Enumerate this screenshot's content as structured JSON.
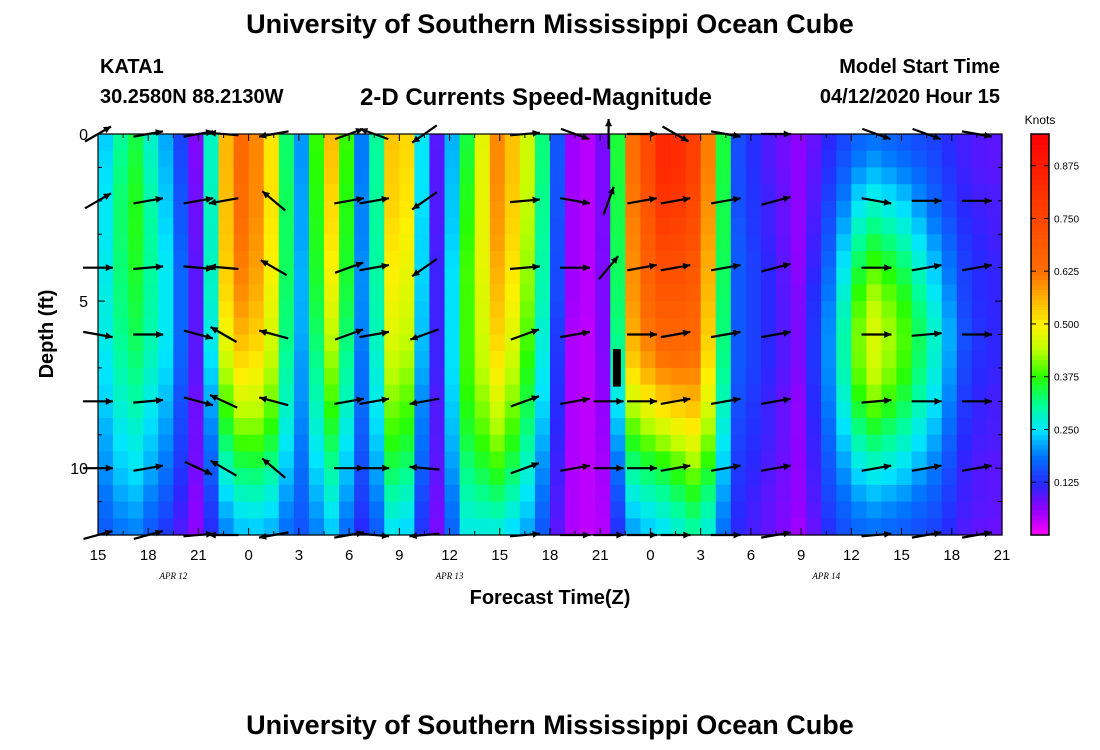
{
  "header": {
    "title": "University of Southern Mississippi Ocean Cube",
    "station_id": "KATA1",
    "station_coords": "30.2580N 88.2130W",
    "subtitle": "2-D Currents Speed-Magnitude",
    "model_start_label": "Model Start Time",
    "model_start_value": "04/12/2020 Hour 15"
  },
  "footer": {
    "title": "University of Southern Mississippi Ocean Cube"
  },
  "chart_data": {
    "type": "heatmap",
    "title": "2-D Currents Speed-Magnitude",
    "xlabel": "Forecast Time(Z)",
    "ylabel": "Depth (ft)",
    "x_range_hours": [
      0,
      54
    ],
    "x_tick_labels": [
      "15",
      "18",
      "21",
      "0",
      "3",
      "6",
      "9",
      "12",
      "15",
      "18",
      "21",
      "0",
      "3",
      "6",
      "9",
      "12",
      "15",
      "18",
      "21"
    ],
    "date_labels": [
      {
        "label": "APR 12",
        "hour": 4.5
      },
      {
        "label": "APR 13",
        "hour": 21
      },
      {
        "label": "APR 14",
        "hour": 43.5
      }
    ],
    "ylim": [
      0,
      12
    ],
    "y_ticks": [
      0,
      5,
      10
    ],
    "y_tick_labels": [
      "0",
      "5",
      "10"
    ],
    "colorbar": {
      "units": "Knots",
      "range": [
        0,
        0.95
      ],
      "ticks": [
        0.125,
        0.25,
        0.375,
        0.5,
        0.625,
        0.75,
        0.875
      ],
      "tick_labels": [
        "0.125",
        "0.250",
        "0.375",
        "0.500",
        "0.625",
        "0.750",
        "0.875"
      ]
    },
    "depth_profile_ft": [
      0,
      1,
      2,
      3,
      4,
      5,
      6,
      7,
      8,
      9,
      10,
      11,
      12
    ],
    "speed_profiles": [
      {
        "hour": 0,
        "speeds": [
          0.2,
          0.21,
          0.22,
          0.22,
          0.23,
          0.24,
          0.24,
          0.23,
          0.22,
          0.2,
          0.19,
          0.17,
          0.15
        ]
      },
      {
        "hour": 2,
        "speeds": [
          0.36,
          0.37,
          0.38,
          0.38,
          0.37,
          0.36,
          0.35,
          0.33,
          0.31,
          0.28,
          0.26,
          0.23,
          0.2
        ]
      },
      {
        "hour": 4,
        "speeds": [
          0.22,
          0.23,
          0.24,
          0.25,
          0.26,
          0.26,
          0.26,
          0.25,
          0.23,
          0.21,
          0.19,
          0.16,
          0.13
        ]
      },
      {
        "hour": 6,
        "speeds": [
          0.06,
          0.06,
          0.07,
          0.07,
          0.08,
          0.08,
          0.08,
          0.08,
          0.07,
          0.07,
          0.07,
          0.06,
          0.06
        ]
      },
      {
        "hour": 8,
        "speeds": [
          0.66,
          0.66,
          0.65,
          0.64,
          0.63,
          0.61,
          0.57,
          0.52,
          0.46,
          0.4,
          0.33,
          0.27,
          0.22
        ]
      },
      {
        "hour": 10,
        "speeds": [
          0.58,
          0.58,
          0.58,
          0.57,
          0.56,
          0.54,
          0.52,
          0.49,
          0.45,
          0.4,
          0.34,
          0.28,
          0.23
        ]
      },
      {
        "hour": 12,
        "speeds": [
          0.18,
          0.18,
          0.19,
          0.19,
          0.2,
          0.2,
          0.2,
          0.19,
          0.19,
          0.18,
          0.17,
          0.16,
          0.15
        ]
      },
      {
        "hour": 14,
        "speeds": [
          0.56,
          0.55,
          0.53,
          0.52,
          0.5,
          0.48,
          0.45,
          0.42,
          0.39,
          0.35,
          0.31,
          0.27,
          0.23
        ]
      },
      {
        "hour": 16,
        "speeds": [
          0.14,
          0.14,
          0.15,
          0.15,
          0.16,
          0.16,
          0.16,
          0.15,
          0.15,
          0.14,
          0.13,
          0.12,
          0.1
        ]
      },
      {
        "hour": 18,
        "speeds": [
          0.66,
          0.65,
          0.64,
          0.62,
          0.6,
          0.58,
          0.56,
          0.53,
          0.49,
          0.45,
          0.4,
          0.34,
          0.29
        ]
      },
      {
        "hour": 20,
        "speeds": [
          0.06,
          0.06,
          0.06,
          0.06,
          0.07,
          0.07,
          0.07,
          0.07,
          0.06,
          0.06,
          0.06,
          0.05,
          0.05
        ]
      },
      {
        "hour": 22,
        "speeds": [
          0.34,
          0.35,
          0.36,
          0.37,
          0.38,
          0.38,
          0.38,
          0.38,
          0.37,
          0.35,
          0.32,
          0.29,
          0.26
        ]
      },
      {
        "hour": 24,
        "speeds": [
          0.62,
          0.62,
          0.61,
          0.6,
          0.58,
          0.56,
          0.54,
          0.51,
          0.47,
          0.43,
          0.38,
          0.32,
          0.26
        ]
      },
      {
        "hour": 26,
        "speeds": [
          0.42,
          0.42,
          0.41,
          0.4,
          0.39,
          0.38,
          0.36,
          0.34,
          0.32,
          0.29,
          0.26,
          0.23,
          0.2
        ]
      },
      {
        "hour": 28,
        "speeds": [
          0.06,
          0.06,
          0.06,
          0.06,
          0.06,
          0.06,
          0.05,
          0.05,
          0.05,
          0.05,
          0.05,
          0.05,
          0.05
        ]
      },
      {
        "hour": 30,
        "speeds": [
          0.03,
          0.03,
          0.03,
          0.03,
          0.03,
          0.03,
          0.03,
          0.03,
          0.03,
          0.03,
          0.03,
          0.03,
          0.03
        ]
      },
      {
        "hour": 32,
        "speeds": [
          0.64,
          0.64,
          0.63,
          0.62,
          0.61,
          0.6,
          0.58,
          0.54,
          0.46,
          0.39,
          0.32,
          0.26,
          0.21
        ]
      },
      {
        "hour": 34,
        "speeds": [
          0.86,
          0.86,
          0.82,
          0.78,
          0.74,
          0.7,
          0.66,
          0.62,
          0.54,
          0.45,
          0.36,
          0.3,
          0.25
        ]
      },
      {
        "hour": 36,
        "speeds": [
          0.74,
          0.74,
          0.72,
          0.7,
          0.68,
          0.66,
          0.64,
          0.61,
          0.56,
          0.5,
          0.43,
          0.36,
          0.31
        ]
      },
      {
        "hour": 38,
        "speeds": [
          0.16,
          0.16,
          0.16,
          0.17,
          0.17,
          0.17,
          0.17,
          0.17,
          0.16,
          0.15,
          0.14,
          0.13,
          0.12
        ]
      },
      {
        "hour": 40,
        "speeds": [
          0.1,
          0.1,
          0.11,
          0.11,
          0.12,
          0.12,
          0.12,
          0.12,
          0.11,
          0.11,
          0.1,
          0.09,
          0.09
        ]
      },
      {
        "hour": 42,
        "speeds": [
          0.06,
          0.06,
          0.06,
          0.06,
          0.06,
          0.07,
          0.07,
          0.07,
          0.06,
          0.06,
          0.06,
          0.06,
          0.05
        ]
      },
      {
        "hour": 44,
        "speeds": [
          0.13,
          0.14,
          0.16,
          0.18,
          0.2,
          0.22,
          0.23,
          0.23,
          0.22,
          0.2,
          0.18,
          0.16,
          0.14
        ]
      },
      {
        "hour": 46,
        "speeds": [
          0.18,
          0.22,
          0.28,
          0.34,
          0.4,
          0.45,
          0.48,
          0.47,
          0.42,
          0.35,
          0.28,
          0.22,
          0.18
        ]
      },
      {
        "hour": 48,
        "speeds": [
          0.16,
          0.19,
          0.24,
          0.29,
          0.34,
          0.38,
          0.4,
          0.39,
          0.35,
          0.3,
          0.25,
          0.2,
          0.16
        ]
      },
      {
        "hour": 50,
        "speeds": [
          0.14,
          0.15,
          0.17,
          0.2,
          0.23,
          0.26,
          0.28,
          0.27,
          0.25,
          0.22,
          0.19,
          0.16,
          0.14
        ]
      },
      {
        "hour": 52,
        "speeds": [
          0.1,
          0.1,
          0.11,
          0.12,
          0.13,
          0.13,
          0.14,
          0.13,
          0.12,
          0.11,
          0.1,
          0.1,
          0.09
        ]
      },
      {
        "hour": 54,
        "speeds": [
          0.09,
          0.09,
          0.1,
          0.1,
          0.11,
          0.11,
          0.11,
          0.11,
          0.1,
          0.1,
          0.09,
          0.09,
          0.08
        ]
      }
    ],
    "vector_depths_ft": [
      0,
      2,
      4,
      6,
      8,
      10,
      12
    ],
    "vector_columns": [
      {
        "hour": 0,
        "dirs": [
          60,
          60,
          90,
          100,
          90,
          90,
          75
        ]
      },
      {
        "hour": 3,
        "dirs": [
          80,
          80,
          85,
          90,
          85,
          80,
          75
        ]
      },
      {
        "hour": 6,
        "dirs": [
          80,
          80,
          95,
          105,
          105,
          115,
          85
        ]
      },
      {
        "hour": 7.5,
        "dirs": [
          275,
          260,
          275,
          300,
          295,
          300,
          270
        ]
      },
      {
        "hour": 10.5,
        "dirs": [
          260,
          310,
          300,
          285,
          285,
          310,
          260
        ]
      },
      {
        "hour": 15,
        "dirs": [
          70,
          80,
          70,
          70,
          80,
          90,
          80
        ]
      },
      {
        "hour": 16.5,
        "dirs": [
          290,
          80,
          80,
          80,
          80,
          90,
          95
        ]
      },
      {
        "hour": 19.5,
        "dirs": [
          235,
          235,
          235,
          250,
          260,
          275,
          265
        ]
      },
      {
        "hour": 25.5,
        "dirs": [
          85,
          85,
          85,
          70,
          70,
          70,
          85
        ]
      },
      {
        "hour": 28.5,
        "dirs": [
          110,
          100,
          90,
          80,
          80,
          80,
          90
        ]
      },
      {
        "hour": 30.5,
        "dirs": [
          0,
          20,
          40,
          null,
          90,
          90,
          90
        ]
      },
      {
        "hour": 32.5,
        "dirs": [
          90,
          80,
          80,
          90,
          90,
          90,
          90
        ]
      },
      {
        "hour": 34.5,
        "dirs": [
          120,
          80,
          80,
          80,
          80,
          80,
          90
        ]
      },
      {
        "hour": 37.5,
        "dirs": [
          100,
          80,
          80,
          80,
          80,
          80,
          90
        ]
      },
      {
        "hour": 40.5,
        "dirs": [
          90,
          75,
          75,
          80,
          80,
          80,
          80
        ]
      },
      {
        "hour": 46.5,
        "dirs": [
          110,
          100,
          90,
          90,
          85,
          80,
          85
        ]
      },
      {
        "hour": 49.5,
        "dirs": [
          110,
          90,
          80,
          85,
          90,
          80,
          80
        ]
      },
      {
        "hour": 52.5,
        "dirs": [
          100,
          90,
          80,
          90,
          90,
          80,
          80
        ]
      }
    ],
    "missing_data_marker": {
      "hour": 31,
      "depth_ft_start": 6.5,
      "depth_ft_end": 7.5
    },
    "grid": false,
    "legend": "right"
  }
}
